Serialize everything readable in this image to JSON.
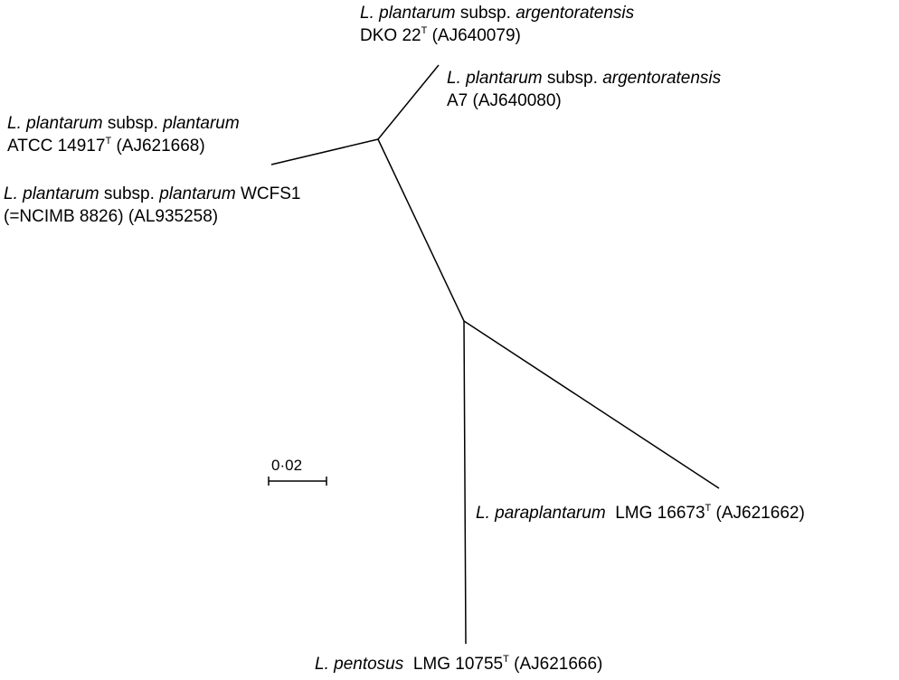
{
  "tree": {
    "leaves": [
      {
        "id": "l-plantarum-argentoratensis-dko22",
        "genus": "L.",
        "species": "plantarum",
        "rank": "subsp.",
        "subspecies": "argentoratensis",
        "strain": "DKO 22",
        "type_strain_mark": "T",
        "accession": "(AJ640079)"
      },
      {
        "id": "l-plantarum-argentoratensis-a7",
        "genus": "L.",
        "species": "plantarum",
        "rank": "subsp.",
        "subspecies": "argentoratensis",
        "strain": "A7",
        "accession": "(AJ640080)"
      },
      {
        "id": "l-plantarum-plantarum-atcc14917",
        "genus": "L.",
        "species": "plantarum",
        "rank": "subsp.",
        "subspecies": "plantarum",
        "strain": "ATCC 14917",
        "type_strain_mark": "T",
        "accession": "(AJ621668)"
      },
      {
        "id": "l-plantarum-plantarum-wcfs1",
        "genus": "L.",
        "species": "plantarum",
        "rank": "subsp.",
        "subspecies": "plantarum",
        "strain": "WCFS1",
        "alt_strain": "(=NCIMB 8826)",
        "accession": "(AL935258)"
      },
      {
        "id": "l-paraplantarum-lmg16673",
        "genus": "L.",
        "species": "paraplantarum",
        "strain": "LMG 16673",
        "type_strain_mark": "T",
        "accession": "(AJ621662)"
      },
      {
        "id": "l-pentosus-lmg10755",
        "genus": "L.",
        "species": "pentosus",
        "strain": "LMG 10755",
        "type_strain_mark": "T",
        "accession": "(AJ621666)"
      }
    ],
    "scale_bar": {
      "label": "0·02",
      "value": 0.02
    }
  }
}
